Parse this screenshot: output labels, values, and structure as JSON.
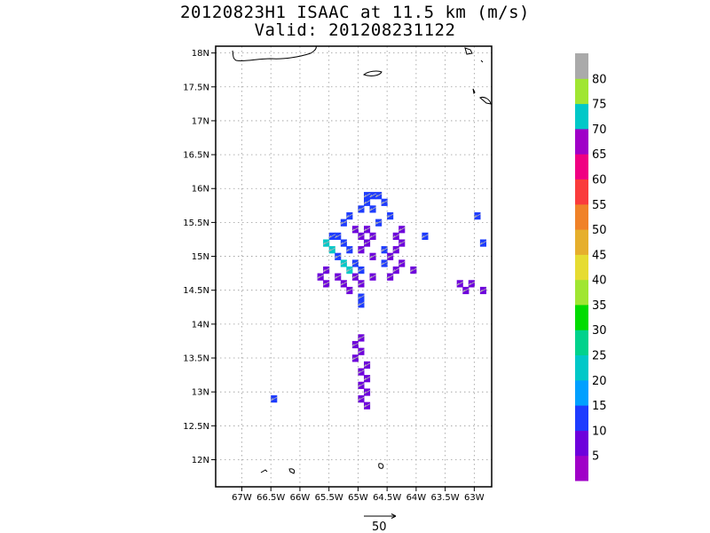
{
  "title_line1": "20120823H1 ISAAC at 11.5 km (m/s)",
  "title_line2": "Valid: 201208231122",
  "map": {
    "lon_range": [
      -67.45,
      -62.7
    ],
    "lat_range": [
      11.6,
      18.1
    ],
    "lon_ticks": [
      {
        "v": -67,
        "label": "67W"
      },
      {
        "v": -66.5,
        "label": "66.5W"
      },
      {
        "v": -66,
        "label": "66W"
      },
      {
        "v": -65.5,
        "label": "65.5W"
      },
      {
        "v": -65,
        "label": "65W"
      },
      {
        "v": -64.5,
        "label": "64.5W"
      },
      {
        "v": -64,
        "label": "64W"
      },
      {
        "v": -63.5,
        "label": "63.5W"
      },
      {
        "v": -63,
        "label": "63W"
      }
    ],
    "lat_ticks": [
      {
        "v": 18,
        "label": "18N"
      },
      {
        "v": 17.5,
        "label": "17.5N"
      },
      {
        "v": 17,
        "label": "17N"
      },
      {
        "v": 16.5,
        "label": "16.5N"
      },
      {
        "v": 16,
        "label": "16N"
      },
      {
        "v": 15.5,
        "label": "15.5N"
      },
      {
        "v": 15,
        "label": "15N"
      },
      {
        "v": 14.5,
        "label": "14.5N"
      },
      {
        "v": 14,
        "label": "14N"
      },
      {
        "v": 13.5,
        "label": "13.5N"
      },
      {
        "v": 13,
        "label": "13N"
      },
      {
        "v": 12.5,
        "label": "12.5N"
      },
      {
        "v": 12,
        "label": "12N"
      }
    ],
    "grid": "dotted"
  },
  "colorbar": {
    "labels": [
      "5",
      "10",
      "15",
      "20",
      "25",
      "30",
      "35",
      "40",
      "45",
      "50",
      "55",
      "60",
      "65",
      "70",
      "75",
      "80"
    ],
    "colors": [
      "#a000c8",
      "#6e00dc",
      "#1e3cff",
      "#00a0ff",
      "#00c8c8",
      "#00d28c",
      "#00dc00",
      "#a0e632",
      "#e6dc32",
      "#e6af2d",
      "#f08228",
      "#fa3c3c",
      "#f00082",
      "#a000c8",
      "#00c8c8",
      "#a0e632",
      "#aaaaaa"
    ]
  },
  "vector_reference": {
    "label": "50"
  },
  "chart_data": {
    "type": "heatmap",
    "variable": "wind speed (m/s)",
    "cells": [
      {
        "lon": -64.85,
        "lat": 15.9,
        "value": 12
      },
      {
        "lon": -64.75,
        "lat": 15.9,
        "value": 12
      },
      {
        "lon": -64.65,
        "lat": 15.9,
        "value": 12
      },
      {
        "lon": -64.55,
        "lat": 15.8,
        "value": 12
      },
      {
        "lon": -64.85,
        "lat": 15.8,
        "value": 12
      },
      {
        "lon": -64.95,
        "lat": 15.7,
        "value": 12
      },
      {
        "lon": -64.75,
        "lat": 15.7,
        "value": 12
      },
      {
        "lon": -64.45,
        "lat": 15.6,
        "value": 12
      },
      {
        "lon": -65.15,
        "lat": 15.6,
        "value": 12
      },
      {
        "lon": -65.25,
        "lat": 15.5,
        "value": 12
      },
      {
        "lon": -64.65,
        "lat": 15.5,
        "value": 12
      },
      {
        "lon": -65.05,
        "lat": 15.4,
        "value": 8
      },
      {
        "lon": -64.85,
        "lat": 15.4,
        "value": 8
      },
      {
        "lon": -64.25,
        "lat": 15.4,
        "value": 8
      },
      {
        "lon": -65.45,
        "lat": 15.3,
        "value": 12
      },
      {
        "lon": -65.35,
        "lat": 15.3,
        "value": 12
      },
      {
        "lon": -64.95,
        "lat": 15.3,
        "value": 8
      },
      {
        "lon": -64.75,
        "lat": 15.3,
        "value": 8
      },
      {
        "lon": -64.35,
        "lat": 15.3,
        "value": 8
      },
      {
        "lon": -65.55,
        "lat": 15.2,
        "value": 22
      },
      {
        "lon": -65.25,
        "lat": 15.2,
        "value": 12
      },
      {
        "lon": -64.85,
        "lat": 15.2,
        "value": 8
      },
      {
        "lon": -64.25,
        "lat": 15.2,
        "value": 8
      },
      {
        "lon": -65.45,
        "lat": 15.1,
        "value": 22
      },
      {
        "lon": -65.15,
        "lat": 15.1,
        "value": 12
      },
      {
        "lon": -64.95,
        "lat": 15.1,
        "value": 8
      },
      {
        "lon": -64.55,
        "lat": 15.1,
        "value": 12
      },
      {
        "lon": -64.35,
        "lat": 15.1,
        "value": 8
      },
      {
        "lon": -65.35,
        "lat": 15.0,
        "value": 12
      },
      {
        "lon": -64.75,
        "lat": 15.0,
        "value": 8
      },
      {
        "lon": -64.45,
        "lat": 15.0,
        "value": 8
      },
      {
        "lon": -65.25,
        "lat": 14.9,
        "value": 22
      },
      {
        "lon": -65.05,
        "lat": 14.9,
        "value": 12
      },
      {
        "lon": -64.55,
        "lat": 14.9,
        "value": 12
      },
      {
        "lon": -64.25,
        "lat": 14.9,
        "value": 8
      },
      {
        "lon": -65.55,
        "lat": 14.8,
        "value": 8
      },
      {
        "lon": -65.15,
        "lat": 14.8,
        "value": 22
      },
      {
        "lon": -64.95,
        "lat": 14.8,
        "value": 12
      },
      {
        "lon": -64.35,
        "lat": 14.8,
        "value": 8
      },
      {
        "lon": -64.05,
        "lat": 14.8,
        "value": 8
      },
      {
        "lon": -65.65,
        "lat": 14.7,
        "value": 8
      },
      {
        "lon": -65.35,
        "lat": 14.7,
        "value": 8
      },
      {
        "lon": -65.05,
        "lat": 14.7,
        "value": 8
      },
      {
        "lon": -64.75,
        "lat": 14.7,
        "value": 8
      },
      {
        "lon": -64.45,
        "lat": 14.7,
        "value": 8
      },
      {
        "lon": -65.55,
        "lat": 14.6,
        "value": 8
      },
      {
        "lon": -65.25,
        "lat": 14.6,
        "value": 8
      },
      {
        "lon": -64.95,
        "lat": 14.6,
        "value": 8
      },
      {
        "lon": -65.15,
        "lat": 14.5,
        "value": 8
      },
      {
        "lon": -64.95,
        "lat": 14.4,
        "value": 12
      },
      {
        "lon": -64.95,
        "lat": 14.3,
        "value": 12
      },
      {
        "lon": -64.95,
        "lat": 13.8,
        "value": 8
      },
      {
        "lon": -65.05,
        "lat": 13.7,
        "value": 8
      },
      {
        "lon": -64.95,
        "lat": 13.6,
        "value": 8
      },
      {
        "lon": -65.05,
        "lat": 13.5,
        "value": 8
      },
      {
        "lon": -64.85,
        "lat": 13.4,
        "value": 8
      },
      {
        "lon": -64.95,
        "lat": 13.3,
        "value": 8
      },
      {
        "lon": -64.85,
        "lat": 13.2,
        "value": 8
      },
      {
        "lon": -64.95,
        "lat": 13.1,
        "value": 8
      },
      {
        "lon": -64.85,
        "lat": 13.0,
        "value": 8
      },
      {
        "lon": -64.95,
        "lat": 12.9,
        "value": 8
      },
      {
        "lon": -64.85,
        "lat": 12.8,
        "value": 8
      },
      {
        "lon": -63.25,
        "lat": 14.6,
        "value": 8
      },
      {
        "lon": -63.05,
        "lat": 14.6,
        "value": 8
      },
      {
        "lon": -62.85,
        "lat": 14.5,
        "value": 8
      },
      {
        "lon": -63.15,
        "lat": 14.5,
        "value": 8
      },
      {
        "lon": -63.85,
        "lat": 15.3,
        "value": 12
      },
      {
        "lon": -62.95,
        "lat": 15.6,
        "value": 12
      },
      {
        "lon": -62.85,
        "lat": 15.2,
        "value": 12
      },
      {
        "lon": -66.45,
        "lat": 12.9,
        "value": 12
      }
    ]
  }
}
